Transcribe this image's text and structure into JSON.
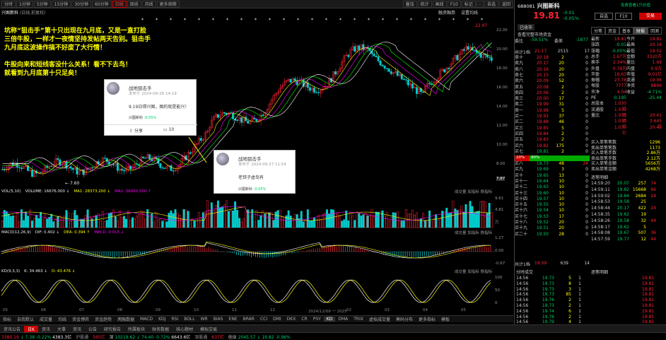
{
  "toolbar": {
    "items": [
      "分时",
      "1分钟",
      "5分钟",
      "15分钟",
      "30分钟",
      "60分钟",
      "日线",
      "周线",
      "月线",
      "更多周期"
    ],
    "active": "日线",
    "right": [
      "叠加",
      "统计",
      "画线",
      "F10",
      "标记",
      "-",
      "自选",
      "返回"
    ]
  },
  "chart_header": {
    "name": "兴图新科",
    "sub": "(日线,前复权)",
    "right": [
      "融资融券",
      "设置均线"
    ]
  },
  "price_axis": [
    "22.00",
    "20.00",
    "18.00",
    "16.00",
    "14.00",
    "12.00",
    "10.00",
    "8.00",
    "7.87"
  ],
  "chart_labels": {
    "high": "22.97",
    "low": "7.60"
  },
  "annotation_lines": [
    "坑称“狙击手”第十只出现在九月底，又是一直打脸",
    "三倍牛股，一样才一夜情坚持发帖两天告别。狙击手",
    "九月底这波操作搞不好废了大行情！",
    "",
    "牛股向来和短线客没什么关系！看不下去鸟！",
    "就看到九月底第十只足矣！"
  ],
  "card1": {
    "author": "战地狙击手",
    "time": "发布于 2024-09-26 14:19",
    "text": "9.19日得兴图，图的就是能兴！",
    "stock": "兴图新科",
    "change": "-0.05%",
    "share": "分享",
    "comments": "10"
  },
  "card2": {
    "author": "战地狙击手",
    "time": "发布于 2024-09-27 11:54",
    "text": "老铁子虚岛有",
    "stock": "兴图新科",
    "change": "-0.05%"
  },
  "vol_bar": {
    "label": "VOL(5,10)",
    "vol": "VOLUME: 16676.000 ↓",
    "ma1": "MA1: 28373.200 ↓",
    "ma2": "MA2: 36000.500 ↑",
    "right": [
      "成交量",
      "加指标",
      "换指标"
    ]
  },
  "vol_axis": [
    "9.61",
    "4.81",
    "万"
  ],
  "macd_bar": {
    "label": "MACD(12,26,9)",
    "dif": "DIF: 0.402 ↓",
    "dea": "DEA: 0.394 ↑",
    "macd": "MACD: 0.015 ↓",
    "right": [
      "成交量",
      "加指标",
      "换指标"
    ]
  },
  "macd_axis": [
    "1.27",
    "0.00",
    "-0.67"
  ],
  "kdj_bar": {
    "label": "KD(9,3,3)",
    "k": "K: 34.463 ↓",
    "d": "D: 43.476 ↓",
    "right": [
      "成交量",
      "加指标",
      "换指标"
    ]
  },
  "kdj_axis": [
    "100",
    "50",
    "0"
  ],
  "date_axis": [
    "05",
    "06",
    "07",
    "08",
    "09",
    "10",
    "11",
    "12",
    "2024/12/09 一 2025",
    "02",
    "03",
    "04",
    "05"
  ],
  "indicator_tabs": [
    "指标",
    "自我默认",
    "成交量",
    "均线",
    "资金博弈",
    "资金趋势",
    "两融数据",
    "MACD",
    "KDJ",
    "RSI",
    "BOLL",
    "WR",
    "BIAS",
    "ENE",
    "BRAR",
    "CCI",
    "DMI",
    "DKX",
    "CR",
    "PSY",
    "KD",
    "DMA",
    "TRIX",
    "虚拟成交量",
    "筹码分布",
    "更多指标",
    "模板"
  ],
  "indicator_active": "KD",
  "bottom_tabs": [
    "资讯公告",
    "日K",
    "资讯",
    "大事",
    "资讯",
    "公告",
    "研究报告",
    "所属板块",
    "财务数据",
    "核心题材",
    "模拟交易"
  ],
  "bottom_active": "日K",
  "ticker": [
    {
      "n": "3380.19",
      "c": "↓ 7.38",
      "p": "-0.22%",
      "a": "4383.3亿"
    },
    {
      "n": "深",
      "c": "10219.62",
      "p": "↓ 74.40",
      "q": "-0.72%",
      "a": "6643.6亿"
    },
    {
      "n": "创业",
      "c": "2045.57",
      "p": "↓ 19.82",
      "q": "-0.96%"
    }
  ],
  "ticker_extra": [
    "沪股通",
    "565亿",
    "深股通",
    "637亿",
    "创业板"
  ],
  "quote": {
    "code": "688081",
    "name": "兴图新科",
    "price": "19.81",
    "chg": "-0.01",
    "pct": "-0.05%",
    "link": "免费查看1只价值",
    "tabs": [
      "自选",
      "F10",
      "交易"
    ],
    "sub_tabs": [
      "已收市",
      "查看完整市场资金"
    ],
    "tab2": [
      "分笔",
      "资金",
      "基本",
      "财报",
      "回测"
    ]
  },
  "weibi": {
    "l": "委比",
    "p": "-59.51%",
    "l2": "委差",
    "v": "-1877"
  },
  "asks": [
    [
      "卖十",
      "20.18",
      "2",
      "0"
    ],
    [
      "卖九",
      "20.17",
      "20",
      "0"
    ],
    [
      "卖八",
      "20.16",
      "20",
      "0"
    ],
    [
      "卖七",
      "20.15",
      "20",
      "0"
    ],
    [
      "卖六",
      "20.09",
      "52",
      "0"
    ],
    [
      "卖五",
      "20.08",
      "2",
      "0"
    ],
    [
      "卖四",
      "20.06",
      "2",
      "0"
    ],
    [
      "卖三",
      "20.00",
      "17",
      "0"
    ],
    [
      "卖二",
      "19.99",
      "31",
      "0"
    ],
    [
      "卖一",
      "19.98",
      "5",
      "0"
    ],
    [
      "买一",
      "19.93",
      "37",
      "0"
    ],
    [
      "买二",
      "19.88",
      "46",
      "0"
    ],
    [
      "买三",
      "19.85",
      "5",
      "0"
    ],
    [
      "买四",
      "19.84",
      "2",
      "0"
    ],
    [
      "买五",
      "19.83",
      "2",
      "0"
    ],
    [
      "买六",
      "19.82",
      "175",
      "0"
    ],
    [
      "买七",
      "19.81",
      "2",
      "0"
    ]
  ],
  "bids": [
    [
      "买八",
      "19.73",
      "48",
      "24"
    ],
    [
      "买九",
      "19.69",
      "3",
      "0"
    ],
    [
      "买十",
      "19.65",
      "13",
      "0"
    ],
    [
      "买十一",
      "19.64",
      "10",
      "0"
    ],
    [
      "买十二",
      "19.63",
      "10",
      "0"
    ],
    [
      "买十三",
      "19.60",
      "10",
      "0"
    ],
    [
      "买十四",
      "19.57",
      "10",
      "0"
    ],
    [
      "买十五",
      "19.55",
      "10",
      "0"
    ],
    [
      "买十六",
      "19.54",
      "10",
      "0"
    ],
    [
      "买十七",
      "19.53",
      "17",
      "0"
    ],
    [
      "买十八",
      "19.52",
      "20",
      "0"
    ],
    [
      "买十九",
      "19.51",
      "20",
      "0"
    ],
    [
      "买二十",
      "19.50",
      "28",
      "0"
    ]
  ],
  "total": {
    "label": "共计1档",
    "p": "21.17",
    "v": "2515",
    "c": "17"
  },
  "total2": {
    "label": "共计1档",
    "p": "19.09",
    "v": "639",
    "c": "14"
  },
  "ratio": {
    "l": "20%",
    "r": "80%"
  },
  "stats": [
    [
      "最新",
      "19.81",
      "今开",
      "19.81"
    ],
    [
      "涨跌",
      "-0.01",
      "最高",
      "20.18"
    ],
    [
      "涨幅",
      "-0.05%",
      "最低",
      "19.52"
    ],
    [
      "总手",
      "1.67万",
      "金额",
      "3320万"
    ],
    [
      "换手",
      "2.34%",
      "量比",
      "1.69"
    ],
    [
      "外盘",
      "0.78万",
      "内盘",
      "0.9万"
    ],
    [
      "市盈",
      "19.63",
      "市值",
      "9.01亿"
    ],
    [
      "振幅",
      "23.78",
      "流通",
      "19.06"
    ],
    [
      "每股",
      "7777",
      "净资",
      "8899"
    ],
    [
      "市净",
      "4.04",
      "收益",
      "-4.71%"
    ],
    [
      "PE",
      "-0.195",
      "",
      "-25.44"
    ],
    [
      "总股本",
      "1.030亿",
      "",
      ""
    ],
    [
      "流通股",
      "1.030亿",
      "",
      ""
    ],
    [
      "量比",
      "1.030亿",
      "",
      "20.41"
    ],
    [
      "",
      "1.030亿",
      "",
      "3.645亿"
    ],
    [
      "",
      "1.030亿",
      "",
      "20.41"
    ]
  ],
  "stats2": [
    [
      "买入单笔笔数",
      "1296"
    ],
    [
      "卖出单笔笔数",
      "1173"
    ],
    [
      "买入单笔手数",
      "2.86万"
    ],
    [
      "卖出单笔手数",
      "2.12万"
    ],
    [
      "买入单笔金额",
      "5656万"
    ],
    [
      "卖出单笔金额",
      "4268万"
    ]
  ],
  "ticks_l": [
    [
      "14:59:20",
      "20.07",
      "257",
      "74"
    ],
    [
      "14:59:11",
      "19.82",
      "15668",
      "66"
    ],
    [
      "14:59:02",
      "19.84",
      "2684",
      "24"
    ],
    [
      "14:58:53",
      "19.58",
      "25",
      ""
    ],
    [
      "14:58:44",
      "20.17",
      "422",
      "24"
    ],
    [
      "14:58:35",
      "19.62",
      "19",
      ""
    ],
    [
      "14:58:26",
      "19.58",
      "32",
      "44"
    ],
    [
      "14:58:17",
      "19.62",
      "5",
      ""
    ],
    [
      "14:58:08",
      "19.67",
      "507",
      "36"
    ],
    [
      "14:57:59",
      "19.77",
      "12",
      "44"
    ]
  ],
  "ticks_r": [
    [
      "14:56",
      "19.73",
      "5",
      "1"
    ],
    [
      "14:56",
      "19.73",
      "8",
      "1"
    ],
    [
      "14:56",
      "19.73",
      "3",
      "1"
    ],
    [
      "14:56",
      "19.73",
      "85",
      "1"
    ],
    [
      "14:56",
      "19.76",
      "2",
      "1"
    ],
    [
      "14:56",
      "19.73",
      "2",
      "1"
    ],
    [
      "14:56",
      "19.74",
      "6",
      "1"
    ],
    [
      "14:56",
      "19.76",
      "2",
      "1"
    ],
    [
      "14:56",
      "19.79",
      "4",
      "1"
    ],
    [
      "15:00",
      "19.81",
      "249",
      "1"
    ]
  ],
  "ticks_rr": [
    "19.81",
    "19.81",
    "19.81",
    "19.81",
    "19.81",
    "19.81",
    "19.81",
    "19.81",
    "19.81",
    "19.81"
  ],
  "section_labels": {
    "fenshi": "分时成交",
    "minute": "逐笔明细",
    "zuibi": "逐笔明细"
  },
  "colors": {
    "up": "#f23",
    "down": "#0cc",
    "bg": "#000",
    "yellow": "#ff0"
  }
}
